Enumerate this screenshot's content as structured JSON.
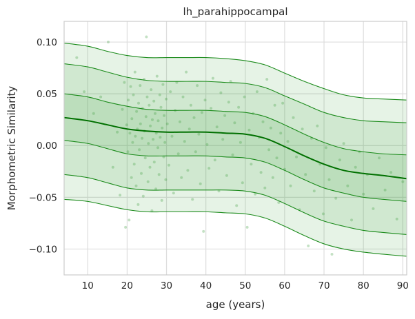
{
  "chart_data": {
    "type": "line",
    "title": "lh_parahippocampal",
    "xlabel": "age (years)",
    "ylabel": "Morphometric Similarity",
    "xlim": [
      4,
      91
    ],
    "ylim": [
      -0.125,
      0.12
    ],
    "x_ticks": [
      10,
      20,
      30,
      40,
      50,
      60,
      70,
      80,
      90
    ],
    "y_ticks": [
      0.1,
      0.05,
      0.0,
      -0.05,
      -0.1
    ],
    "x_tick_labels": [
      "10",
      "20",
      "30",
      "40",
      "50",
      "60",
      "70",
      "80",
      "90"
    ],
    "y_tick_labels": [
      "0.10",
      "0.05",
      "0.00",
      "−0.05",
      "−0.10"
    ],
    "grid": true,
    "line_color": "#1a8a1a",
    "median_color": "#007000",
    "fill_color": "#2e9b2e",
    "point_color": "#3a9a3a",
    "x": [
      4,
      10,
      15,
      20,
      25,
      30,
      35,
      40,
      45,
      50,
      55,
      60,
      65,
      70,
      75,
      80,
      85,
      91
    ],
    "series": [
      {
        "quantile": 0.01,
        "values": [
          -0.052,
          -0.054,
          -0.058,
          -0.062,
          -0.064,
          -0.064,
          -0.064,
          -0.064,
          -0.065,
          -0.066,
          -0.07,
          -0.078,
          -0.087,
          -0.095,
          -0.1,
          -0.103,
          -0.105,
          -0.107
        ]
      },
      {
        "quantile": 0.05,
        "values": [
          -0.028,
          -0.031,
          -0.036,
          -0.041,
          -0.043,
          -0.043,
          -0.043,
          -0.043,
          -0.043,
          -0.044,
          -0.048,
          -0.056,
          -0.065,
          -0.073,
          -0.078,
          -0.082,
          -0.084,
          -0.086
        ]
      },
      {
        "quantile": 0.25,
        "values": [
          0.005,
          0.002,
          -0.003,
          -0.008,
          -0.01,
          -0.01,
          -0.01,
          -0.01,
          -0.011,
          -0.012,
          -0.016,
          -0.024,
          -0.033,
          -0.041,
          -0.046,
          -0.05,
          -0.052,
          -0.054
        ]
      },
      {
        "quantile": 0.5,
        "values": [
          0.027,
          0.024,
          0.02,
          0.016,
          0.014,
          0.013,
          0.013,
          0.013,
          0.012,
          0.011,
          0.007,
          -0.001,
          -0.01,
          -0.018,
          -0.024,
          -0.027,
          -0.029,
          -0.032
        ]
      },
      {
        "quantile": 0.75,
        "values": [
          0.05,
          0.047,
          0.042,
          0.038,
          0.035,
          0.034,
          0.034,
          0.034,
          0.033,
          0.032,
          0.028,
          0.02,
          0.011,
          0.003,
          -0.003,
          -0.006,
          -0.008,
          -0.009
        ]
      },
      {
        "quantile": 0.95,
        "values": [
          0.079,
          0.076,
          0.071,
          0.066,
          0.063,
          0.062,
          0.062,
          0.062,
          0.061,
          0.06,
          0.056,
          0.048,
          0.04,
          0.032,
          0.027,
          0.024,
          0.023,
          0.022
        ]
      },
      {
        "quantile": 0.99,
        "values": [
          0.099,
          0.096,
          0.091,
          0.087,
          0.085,
          0.085,
          0.085,
          0.085,
          0.084,
          0.082,
          0.078,
          0.07,
          0.062,
          0.055,
          0.049,
          0.046,
          0.045,
          0.044
        ]
      }
    ],
    "bands": [
      {
        "from": 0.01,
        "to": 0.99,
        "opacity": 0.12
      },
      {
        "from": 0.05,
        "to": 0.95,
        "opacity": 0.12
      },
      {
        "from": 0.25,
        "to": 0.75,
        "opacity": 0.12
      }
    ],
    "scatter_points": [
      [
        7.2,
        0.085
      ],
      [
        9.1,
        0.052
      ],
      [
        11.5,
        0.031
      ],
      [
        13.3,
        0.047
      ],
      [
        15.2,
        0.1
      ],
      [
        16.4,
        -0.021
      ],
      [
        17.5,
        0.013
      ],
      [
        18.2,
        -0.048
      ],
      [
        18.8,
        0.035
      ],
      [
        19.3,
        0.061
      ],
      [
        19.6,
        -0.079
      ],
      [
        19.9,
        0.02
      ],
      [
        20.2,
        -0.006
      ],
      [
        20.3,
        0.044
      ],
      [
        20.5,
        -0.072
      ],
      [
        20.7,
        0.012
      ],
      [
        20.9,
        0.057
      ],
      [
        21.1,
        -0.031
      ],
      [
        21.2,
        0.026
      ],
      [
        21.4,
        0.003
      ],
      [
        21.6,
        0.049
      ],
      [
        21.8,
        -0.018
      ],
      [
        22.0,
        0.071
      ],
      [
        22.1,
        0.009
      ],
      [
        22.3,
        -0.039
      ],
      [
        22.4,
        0.033
      ],
      [
        22.6,
        0.016
      ],
      [
        22.8,
        -0.057
      ],
      [
        22.9,
        0.041
      ],
      [
        23.1,
        -0.004
      ],
      [
        23.3,
        0.058
      ],
      [
        23.4,
        0.021
      ],
      [
        23.6,
        -0.027
      ],
      [
        23.8,
        0.007
      ],
      [
        23.9,
        0.036
      ],
      [
        24.1,
        -0.049
      ],
      [
        24.3,
        0.064
      ],
      [
        24.4,
        0.014
      ],
      [
        24.6,
        -0.012
      ],
      [
        24.8,
        0.028
      ],
      [
        24.9,
        0.105
      ],
      [
        25.1,
        0.047
      ],
      [
        25.3,
        -0.035
      ],
      [
        25.4,
        0.002
      ],
      [
        25.6,
        0.039
      ],
      [
        25.8,
        -0.021
      ],
      [
        25.9,
        0.019
      ],
      [
        26.1,
        0.054
      ],
      [
        26.3,
        -0.063
      ],
      [
        26.4,
        0.025
      ],
      [
        26.6,
        0.006
      ],
      [
        26.8,
        0.043
      ],
      [
        26.9,
        -0.016
      ],
      [
        27.1,
        0.031
      ],
      [
        27.3,
        -0.042
      ],
      [
        27.4,
        0.012
      ],
      [
        27.6,
        0.067
      ],
      [
        27.8,
        -0.002
      ],
      [
        27.9,
        0.024
      ],
      [
        28.1,
        -0.028
      ],
      [
        28.3,
        0.049
      ],
      [
        28.4,
        0.008
      ],
      [
        28.6,
        0.037
      ],
      [
        28.8,
        -0.053
      ],
      [
        28.9,
        0.017
      ],
      [
        29.1,
        0.059
      ],
      [
        29.3,
        -0.011
      ],
      [
        29.4,
        0.029
      ],
      [
        29.6,
        0.003
      ],
      [
        29.8,
        -0.033
      ],
      [
        29.9,
        0.045
      ],
      [
        30.2,
        0.021
      ],
      [
        30.6,
        -0.019
      ],
      [
        31.0,
        0.052
      ],
      [
        31.4,
        0.009
      ],
      [
        31.8,
        -0.046
      ],
      [
        32.2,
        0.034
      ],
      [
        32.6,
        0.061
      ],
      [
        33.0,
        -0.008
      ],
      [
        33.4,
        0.023
      ],
      [
        33.8,
        -0.031
      ],
      [
        34.2,
        0.047
      ],
      [
        34.6,
        0.004
      ],
      [
        35.0,
        0.071
      ],
      [
        35.4,
        -0.024
      ],
      [
        35.8,
        0.016
      ],
      [
        36.2,
        0.039
      ],
      [
        36.6,
        -0.052
      ],
      [
        37.0,
        0.027
      ],
      [
        37.4,
        -0.006
      ],
      [
        37.8,
        0.058
      ],
      [
        38.2,
        0.011
      ],
      [
        38.6,
        -0.037
      ],
      [
        39.0,
        0.032
      ],
      [
        39.4,
        -0.083
      ],
      [
        39.8,
        0.044
      ],
      [
        40.3,
        0.001
      ],
      [
        40.8,
        -0.022
      ],
      [
        41.3,
        0.036
      ],
      [
        41.8,
        0.065
      ],
      [
        42.3,
        -0.014
      ],
      [
        42.8,
        0.018
      ],
      [
        43.3,
        -0.044
      ],
      [
        43.8,
        0.051
      ],
      [
        44.3,
        0.006
      ],
      [
        44.8,
        0.029
      ],
      [
        45.3,
        -0.029
      ],
      [
        45.8,
        0.042
      ],
      [
        46.3,
        0.062
      ],
      [
        46.8,
        -0.009
      ],
      [
        47.3,
        0.022
      ],
      [
        47.8,
        -0.058
      ],
      [
        48.3,
        0.037
      ],
      [
        48.8,
        0.003
      ],
      [
        49.3,
        -0.036
      ],
      [
        49.8,
        0.047
      ],
      [
        50.5,
        -0.079
      ],
      [
        51.0,
        0.015
      ],
      [
        51.5,
        -0.018
      ],
      [
        52.0,
        0.031
      ],
      [
        52.5,
        -0.047
      ],
      [
        53.0,
        0.052
      ],
      [
        53.5,
        0.008
      ],
      [
        54.0,
        -0.026
      ],
      [
        54.5,
        0.023
      ],
      [
        55.0,
        -0.041
      ],
      [
        55.5,
        0.064
      ],
      [
        56.0,
        -0.004
      ],
      [
        56.5,
        0.017
      ],
      [
        57.0,
        -0.031
      ],
      [
        57.5,
        0.039
      ],
      [
        58.0,
        -0.012
      ],
      [
        58.5,
        -0.055
      ],
      [
        59.0,
        0.012
      ],
      [
        59.5,
        0.041
      ],
      [
        60.0,
        -0.023
      ],
      [
        60.8,
        0.004
      ],
      [
        61.5,
        -0.039
      ],
      [
        62.2,
        0.027
      ],
      [
        63.0,
        -0.011
      ],
      [
        63.8,
        -0.062
      ],
      [
        64.5,
        0.016
      ],
      [
        65.3,
        -0.028
      ],
      [
        66.0,
        -0.097
      ],
      [
        66.8,
        0.007
      ],
      [
        67.5,
        -0.044
      ],
      [
        68.3,
        0.019
      ],
      [
        69.0,
        -0.018
      ],
      [
        69.8,
        -0.066
      ],
      [
        70.5,
        -0.002
      ],
      [
        71.3,
        -0.033
      ],
      [
        72.0,
        -0.105
      ],
      [
        73.0,
        -0.051
      ],
      [
        74.0,
        -0.014
      ],
      [
        75.0,
        0.002
      ],
      [
        76.0,
        -0.039
      ],
      [
        77.0,
        -0.072
      ],
      [
        78.0,
        -0.021
      ],
      [
        79.0,
        -0.006
      ],
      [
        80.0,
        -0.047
      ],
      [
        81.0,
        -0.028
      ],
      [
        82.5,
        -0.061
      ],
      [
        84.0,
        -0.012
      ],
      [
        85.5,
        -0.043
      ],
      [
        87.0,
        -0.026
      ],
      [
        88.5,
        -0.071
      ],
      [
        90.0,
        -0.035
      ]
    ]
  }
}
